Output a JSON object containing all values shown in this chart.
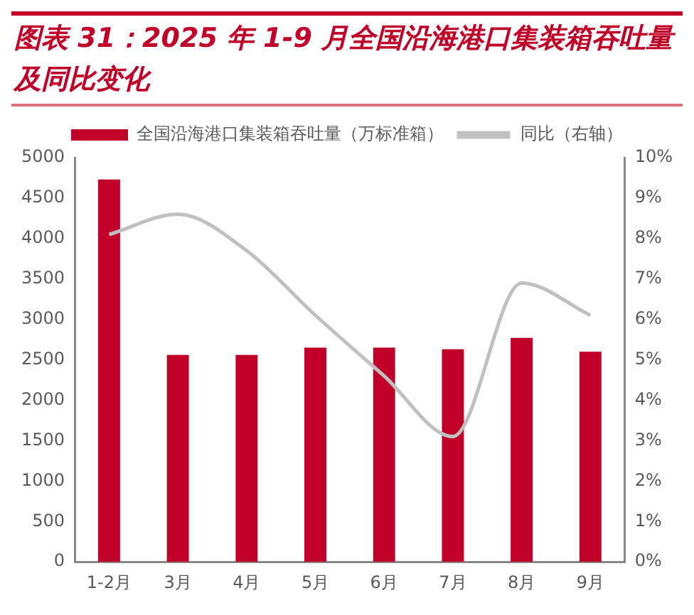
{
  "chart_data": {
    "type": "bar",
    "title": "图表 31：2025 年 1-9 月全国沿海港口集装箱吞吐量及同比变化",
    "categories": [
      "1-2月",
      "3月",
      "4月",
      "5月",
      "6月",
      "7月",
      "8月",
      "9月"
    ],
    "series": [
      {
        "name": "全国沿海港口集装箱吞吐量（万标准箱）",
        "color": "#c00028",
        "values": [
          4730,
          2560,
          2560,
          2650,
          2650,
          2630,
          2770,
          2600
        ]
      },
      {
        "name": "同比（右轴）",
        "type": "line",
        "axis": "y2",
        "color": "#c0c0c0",
        "values": [
          8.1,
          8.6,
          7.7,
          6.1,
          4.6,
          3.1,
          6.9,
          6.1
        ]
      }
    ],
    "ylim": [
      0,
      5000
    ],
    "yticks": [
      0,
      500,
      1000,
      1500,
      2000,
      2500,
      3000,
      3500,
      4000,
      4500,
      5000
    ],
    "y2lim": [
      0,
      10
    ],
    "y2ticks": [
      {
        "value": 0,
        "label": "0%"
      },
      {
        "value": 1,
        "label": "1%"
      },
      {
        "value": 2,
        "label": "2%"
      },
      {
        "value": 3,
        "label": "3%"
      },
      {
        "value": 4,
        "label": "4%"
      },
      {
        "value": 5,
        "label": "5%"
      },
      {
        "value": 6,
        "label": "6%"
      },
      {
        "value": 7,
        "label": "7%"
      },
      {
        "value": 8,
        "label": "8%"
      },
      {
        "value": 9,
        "label": "9%"
      },
      {
        "value": 10,
        "label": "10%"
      }
    ],
    "grid": false,
    "legend": "top",
    "marker": "none",
    "line_style": "solid"
  }
}
